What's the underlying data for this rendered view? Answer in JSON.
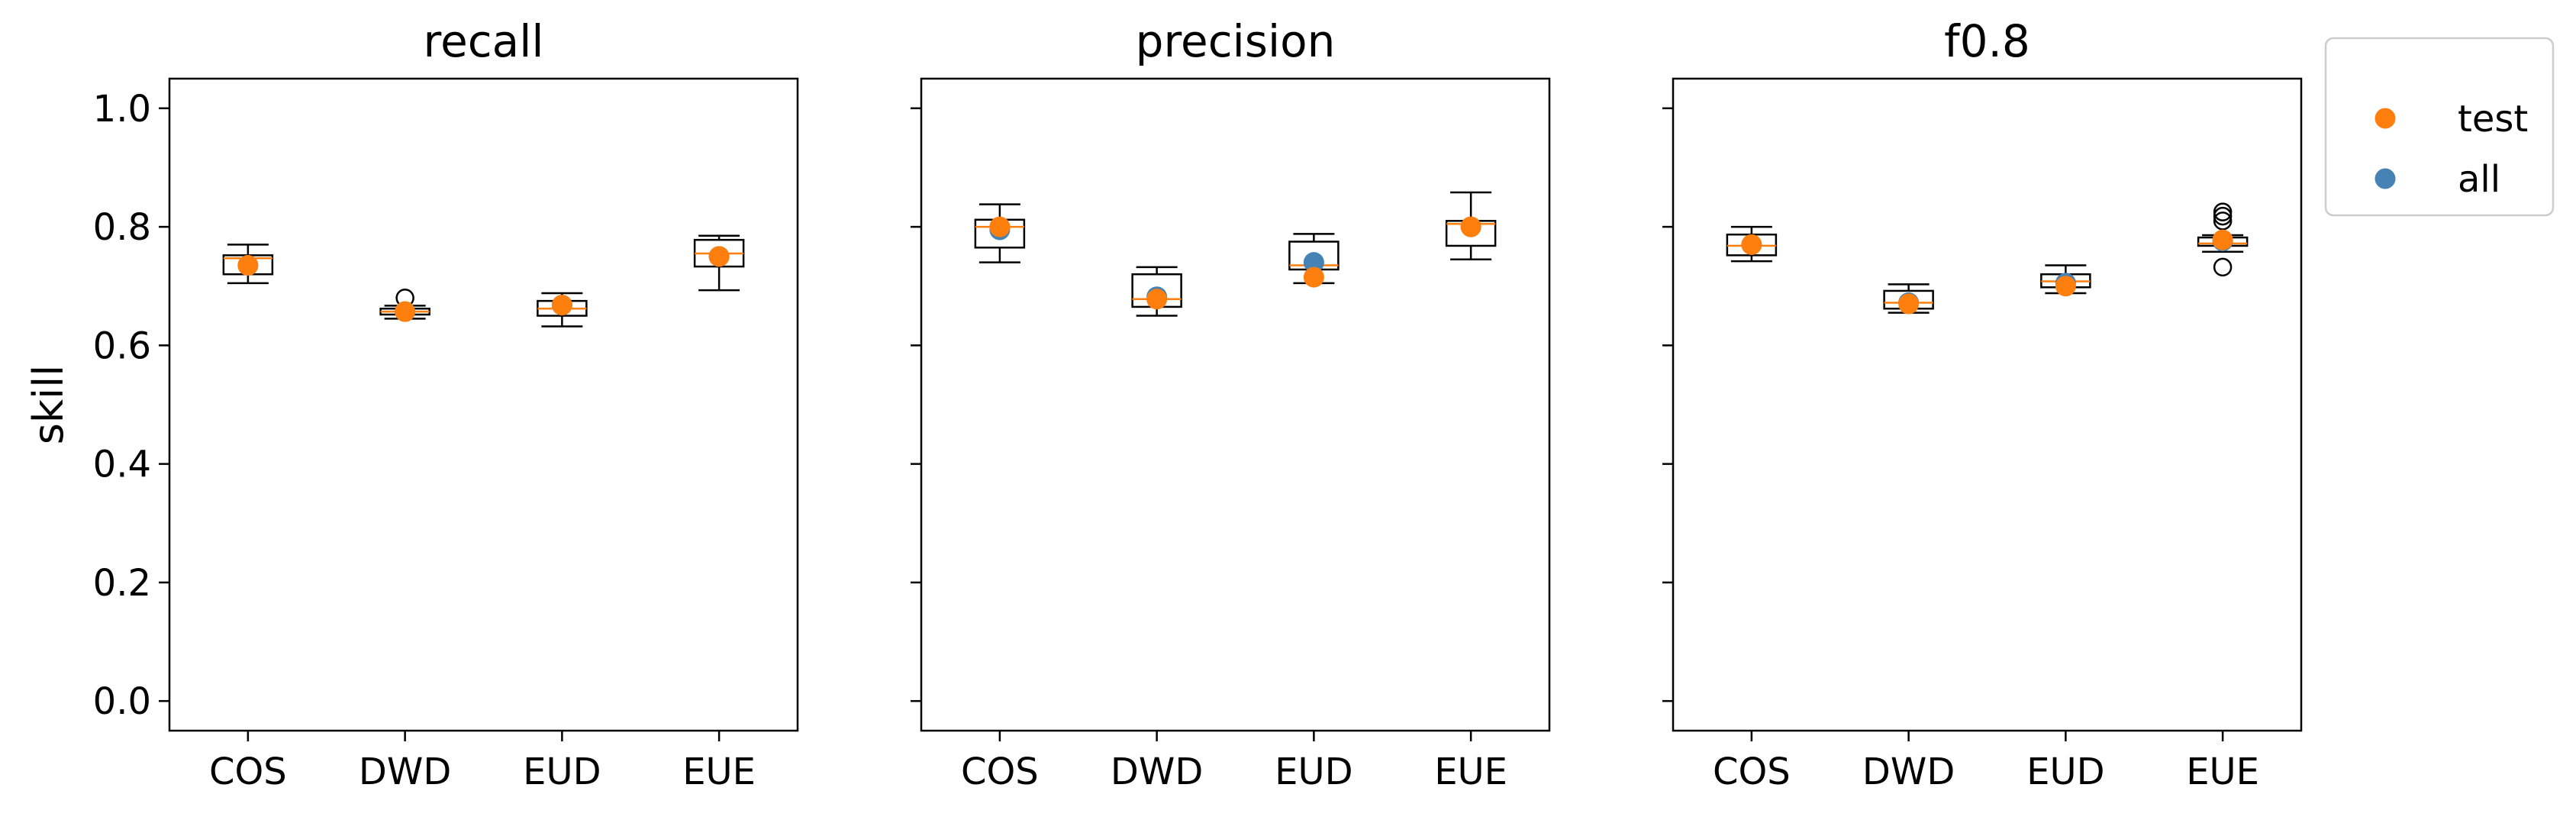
{
  "colors": {
    "test": "#ff7f0e",
    "all": "#4682b4",
    "median": "#ff7f0e",
    "box": "#000000",
    "background": "#ffffff"
  },
  "y_axis_label": "skill",
  "legend": {
    "placement": "outside-right-top",
    "entries": [
      {
        "label": "test",
        "color": "#ff7f0e"
      },
      {
        "label": "all",
        "color": "#4682b4"
      }
    ]
  },
  "chart_data": [
    {
      "type": "box",
      "title": "recall",
      "xlabel": "",
      "ylabel": "skill",
      "ylim": [
        -0.05,
        1.05
      ],
      "yticks": [
        "0.0",
        "0.2",
        "0.4",
        "0.6",
        "0.8",
        "1.0"
      ],
      "categories": [
        "COS",
        "DWD",
        "EUD",
        "EUE"
      ],
      "boxes": [
        {
          "whisker_low": 0.705,
          "q1": 0.72,
          "median": 0.747,
          "q3": 0.752,
          "whisker_high": 0.77,
          "outliers": []
        },
        {
          "whisker_low": 0.645,
          "q1": 0.652,
          "median": 0.657,
          "q3": 0.662,
          "whisker_high": 0.667,
          "outliers": [
            0.68
          ]
        },
        {
          "whisker_low": 0.632,
          "q1": 0.65,
          "median": 0.662,
          "q3": 0.675,
          "whisker_high": 0.688,
          "outliers": []
        },
        {
          "whisker_low": 0.693,
          "q1": 0.733,
          "median": 0.755,
          "q3": 0.778,
          "whisker_high": 0.785,
          "outliers": []
        }
      ],
      "series": [
        {
          "name": "all",
          "values": [
            0.735,
            0.657,
            0.668,
            0.75
          ]
        },
        {
          "name": "test",
          "values": [
            0.735,
            0.657,
            0.668,
            0.75
          ]
        }
      ]
    },
    {
      "type": "box",
      "title": "precision",
      "xlabel": "",
      "ylabel": "",
      "ylim": [
        -0.05,
        1.05
      ],
      "yticks": [
        "",
        "",
        "",
        "",
        "",
        ""
      ],
      "categories": [
        "COS",
        "DWD",
        "EUD",
        "EUE"
      ],
      "boxes": [
        {
          "whisker_low": 0.74,
          "q1": 0.765,
          "median": 0.8,
          "q3": 0.812,
          "whisker_high": 0.838,
          "outliers": []
        },
        {
          "whisker_low": 0.65,
          "q1": 0.665,
          "median": 0.678,
          "q3": 0.72,
          "whisker_high": 0.732,
          "outliers": []
        },
        {
          "whisker_low": 0.705,
          "q1": 0.728,
          "median": 0.735,
          "q3": 0.775,
          "whisker_high": 0.788,
          "outliers": []
        },
        {
          "whisker_low": 0.745,
          "q1": 0.768,
          "median": 0.805,
          "q3": 0.81,
          "whisker_high": 0.858,
          "outliers": []
        }
      ],
      "series": [
        {
          "name": "all",
          "values": [
            0.795,
            0.682,
            0.74,
            0.8
          ]
        },
        {
          "name": "test",
          "values": [
            0.8,
            0.678,
            0.715,
            0.8
          ]
        }
      ]
    },
    {
      "type": "box",
      "title": "f0.8",
      "xlabel": "",
      "ylabel": "",
      "ylim": [
        -0.05,
        1.05
      ],
      "yticks": [
        "",
        "",
        "",
        "",
        "",
        ""
      ],
      "categories": [
        "COS",
        "DWD",
        "EUD",
        "EUE"
      ],
      "boxes": [
        {
          "whisker_low": 0.742,
          "q1": 0.752,
          "median": 0.768,
          "q3": 0.787,
          "whisker_high": 0.8,
          "outliers": []
        },
        {
          "whisker_low": 0.655,
          "q1": 0.662,
          "median": 0.672,
          "q3": 0.692,
          "whisker_high": 0.703,
          "outliers": []
        },
        {
          "whisker_low": 0.688,
          "q1": 0.698,
          "median": 0.708,
          "q3": 0.72,
          "whisker_high": 0.735,
          "outliers": []
        },
        {
          "whisker_low": 0.758,
          "q1": 0.768,
          "median": 0.772,
          "q3": 0.782,
          "whisker_high": 0.786,
          "outliers": [
            0.732,
            0.81,
            0.818,
            0.825
          ]
        }
      ],
      "series": [
        {
          "name": "all",
          "values": [
            0.77,
            0.672,
            0.705,
            0.776
          ]
        },
        {
          "name": "test",
          "values": [
            0.77,
            0.67,
            0.7,
            0.778
          ]
        }
      ]
    }
  ]
}
